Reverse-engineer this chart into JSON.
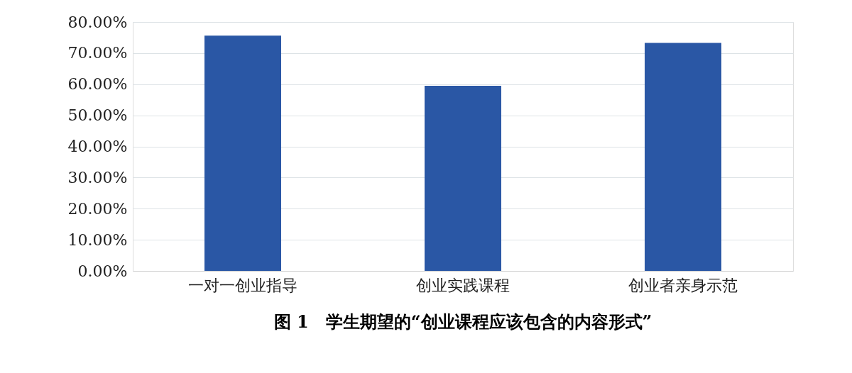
{
  "chart_data": {
    "type": "bar",
    "title": "图 1　学生期望的“创业课程应该包含的内容形式”",
    "categories": [
      "一对一创业指导",
      "创业实践课程",
      "创业者亲身示范"
    ],
    "values": [
      75.6,
      59.5,
      73.3
    ],
    "color": "#2a57a5",
    "ylim": [
      0,
      80
    ],
    "yticks": [
      {
        "value": 0,
        "label": "0.00%"
      },
      {
        "value": 10,
        "label": "10.00%"
      },
      {
        "value": 20,
        "label": "20.00%"
      },
      {
        "value": 30,
        "label": "30.00%"
      },
      {
        "value": 40,
        "label": "40.00%"
      },
      {
        "value": 50,
        "label": "50.00%"
      },
      {
        "value": 60,
        "label": "60.00%"
      },
      {
        "value": 70,
        "label": "70.00%"
      },
      {
        "value": 80,
        "label": "80.00%"
      }
    ],
    "grid": "y"
  }
}
